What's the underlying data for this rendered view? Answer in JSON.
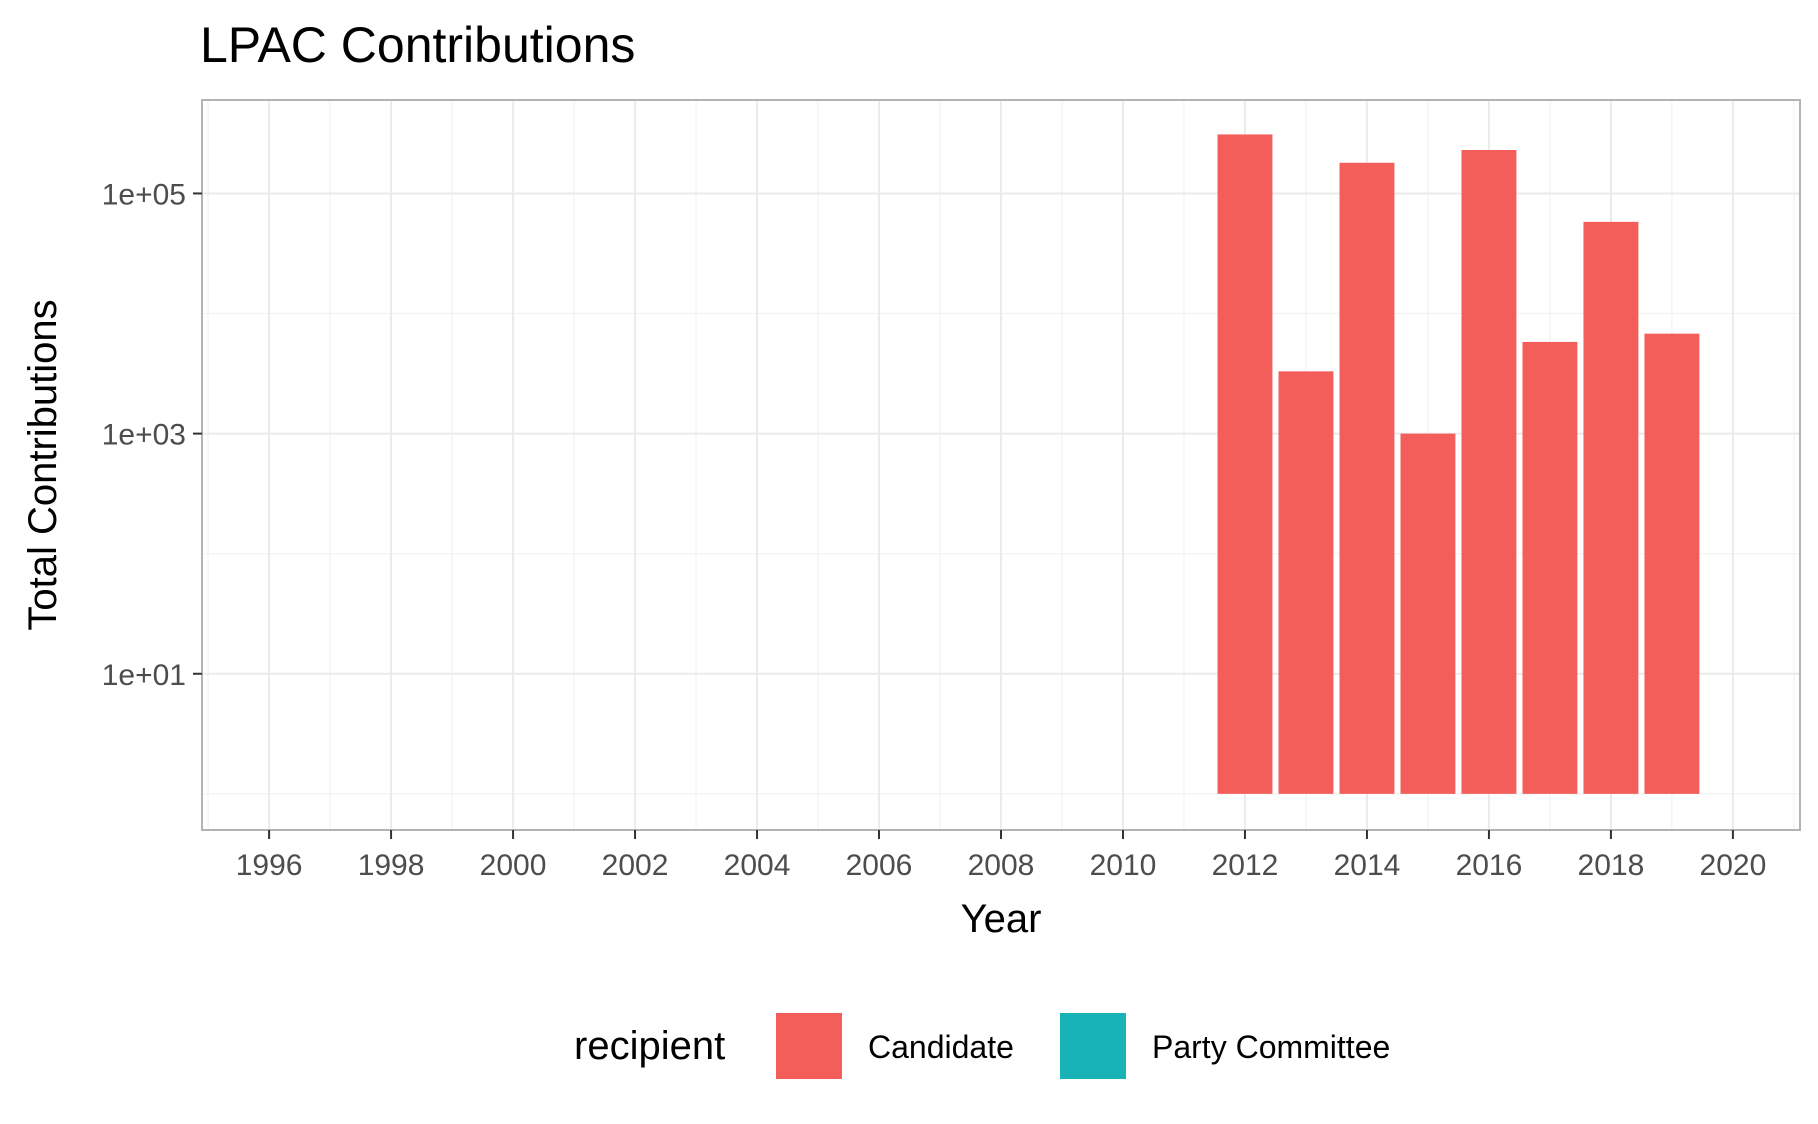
{
  "chart_data": {
    "type": "bar",
    "title": "LPAC Contributions",
    "xlabel": "Year",
    "ylabel": "Total Contributions",
    "y_scale": "log10",
    "xlim": [
      1994.9,
      2021.1
    ],
    "ylim": [
      0.5,
      600000
    ],
    "bar_baseline": 1,
    "x_ticks": [
      1996,
      1998,
      2000,
      2002,
      2004,
      2006,
      2008,
      2010,
      2012,
      2014,
      2016,
      2018,
      2020
    ],
    "x_tick_labels": [
      "1996",
      "1998",
      "2000",
      "2002",
      "2004",
      "2006",
      "2008",
      "2010",
      "2012",
      "2014",
      "2016",
      "2018",
      "2020"
    ],
    "y_ticks": [
      10,
      1000,
      100000
    ],
    "y_tick_labels": [
      "1e+01",
      "1e+03",
      "1e+05"
    ],
    "grid": true,
    "legend": {
      "title": "recipient",
      "position": "bottom",
      "entries": [
        {
          "name": "Candidate",
          "color": "#F35E5A"
        },
        {
          "name": "Party Committee",
          "color": "#17B3B7"
        }
      ]
    },
    "series": [
      {
        "name": "Candidate",
        "color": "#F35E5A",
        "x": [
          2012,
          2013,
          2014,
          2015,
          2016,
          2017,
          2018,
          2019
        ],
        "values": [
          310000,
          3300,
          180000,
          1000,
          230000,
          5800,
          58000,
          6800
        ]
      },
      {
        "name": "Party Committee",
        "color": "#17B3B7",
        "x": [],
        "values": []
      }
    ]
  }
}
